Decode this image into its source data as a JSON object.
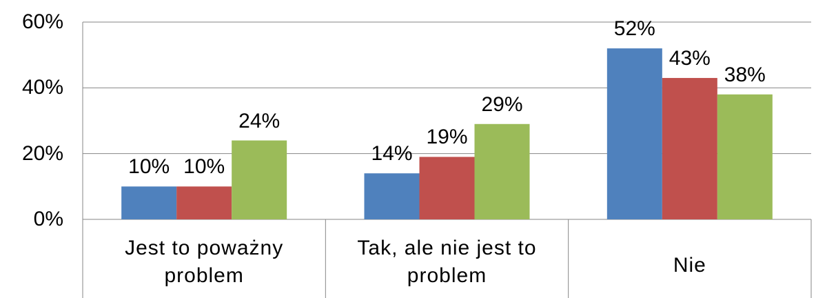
{
  "chart_data": {
    "type": "bar",
    "categories": [
      "Jest to poważny problem",
      "Tak, ale nie jest to problem",
      "Nie"
    ],
    "series": [
      {
        "color": "#4f81bd",
        "values": [
          10,
          14,
          52
        ],
        "value_labels": [
          "10%",
          "14%",
          "52%"
        ]
      },
      {
        "color": "#c0504d",
        "values": [
          10,
          19,
          43
        ],
        "value_labels": [
          "10%",
          "19%",
          "43%"
        ]
      },
      {
        "color": "#9bbb59",
        "values": [
          24,
          29,
          38
        ],
        "value_labels": [
          "24%",
          "29%",
          "38%"
        ]
      }
    ],
    "ylim": [
      0,
      60
    ],
    "yticks": [
      {
        "value": 0,
        "label": "0%"
      },
      {
        "value": 20,
        "label": "20%"
      },
      {
        "value": 40,
        "label": "40%"
      },
      {
        "value": 60,
        "label": "60%"
      }
    ],
    "grid": true
  }
}
